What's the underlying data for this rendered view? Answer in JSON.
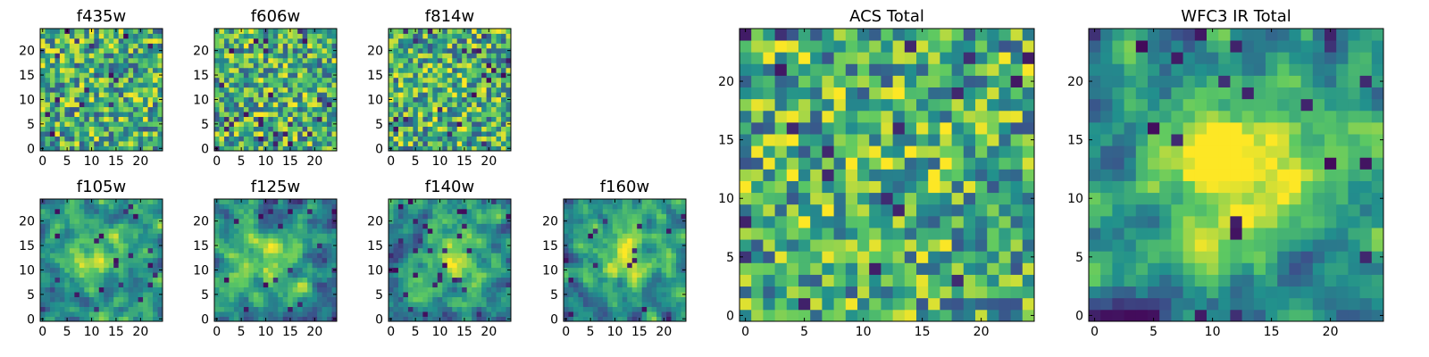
{
  "figure": {
    "colormap": "viridis",
    "colors": [
      "#440154",
      "#3b528b",
      "#21908d",
      "#5dc962",
      "#fde725"
    ]
  },
  "chart_data": [
    {
      "type": "heatmap",
      "title": "f435w",
      "xlim": [
        0,
        24
      ],
      "ylim": [
        0,
        24
      ],
      "xticks": [
        0,
        5,
        10,
        15,
        20
      ],
      "yticks": [
        0,
        5,
        10,
        15,
        20
      ],
      "texture": "noise",
      "center": [
        12,
        12
      ],
      "blob_strength": 0.0,
      "seed": 11
    },
    {
      "type": "heatmap",
      "title": "f606w",
      "xlim": [
        0,
        24
      ],
      "ylim": [
        0,
        24
      ],
      "xticks": [
        0,
        5,
        10,
        15,
        20
      ],
      "yticks": [
        0,
        5,
        10,
        15,
        20
      ],
      "texture": "noise",
      "center": [
        12,
        12
      ],
      "blob_strength": 0.05,
      "seed": 23
    },
    {
      "type": "heatmap",
      "title": "f814w",
      "xlim": [
        0,
        24
      ],
      "ylim": [
        0,
        24
      ],
      "xticks": [
        0,
        5,
        10,
        15,
        20
      ],
      "yticks": [
        0,
        5,
        10,
        15,
        20
      ],
      "texture": "noise",
      "center": [
        12,
        12
      ],
      "blob_strength": 0.05,
      "seed": 37
    },
    {
      "type": "heatmap",
      "title": "f105w",
      "xlim": [
        0,
        24
      ],
      "ylim": [
        0,
        24
      ],
      "xticks": [
        0,
        5,
        10,
        15,
        20
      ],
      "yticks": [
        0,
        5,
        10,
        15,
        20
      ],
      "texture": "smooth",
      "center": [
        11,
        13
      ],
      "blob_strength": 0.35,
      "seed": 41
    },
    {
      "type": "heatmap",
      "title": "f125w",
      "xlim": [
        0,
        24
      ],
      "ylim": [
        0,
        24
      ],
      "xticks": [
        0,
        5,
        10,
        15,
        20
      ],
      "yticks": [
        0,
        5,
        10,
        15,
        20
      ],
      "texture": "smooth",
      "center": [
        11,
        12
      ],
      "blob_strength": 0.3,
      "seed": 53
    },
    {
      "type": "heatmap",
      "title": "f140w",
      "xlim": [
        0,
        24
      ],
      "ylim": [
        0,
        24
      ],
      "xticks": [
        0,
        5,
        10,
        15,
        20
      ],
      "yticks": [
        0,
        5,
        10,
        15,
        20
      ],
      "texture": "smooth",
      "center": [
        13,
        13
      ],
      "blob_strength": 0.35,
      "seed": 67
    },
    {
      "type": "heatmap",
      "title": "f160w",
      "xlim": [
        0,
        24
      ],
      "ylim": [
        0,
        24
      ],
      "xticks": [
        0,
        5,
        10,
        15,
        20
      ],
      "yticks": [
        0,
        5,
        10,
        15,
        20
      ],
      "texture": "smooth",
      "center": [
        12,
        13
      ],
      "blob_strength": 0.45,
      "seed": 79
    },
    {
      "type": "heatmap",
      "title": "ACS Total",
      "xlim": [
        0,
        24
      ],
      "ylim": [
        0,
        24
      ],
      "xticks": [
        0,
        5,
        10,
        15,
        20
      ],
      "yticks": [
        0,
        5,
        10,
        15,
        20
      ],
      "texture": "noise",
      "center": [
        12,
        12
      ],
      "blob_strength": 0.1,
      "seed": 83
    },
    {
      "type": "heatmap",
      "title": "WFC3 IR Total",
      "xlim": [
        0,
        24
      ],
      "ylim": [
        0,
        24
      ],
      "xticks": [
        0,
        5,
        10,
        15,
        20
      ],
      "yticks": [
        0,
        5,
        10,
        15,
        20
      ],
      "texture": "smooth",
      "center": [
        12,
        13
      ],
      "blob_strength": 0.55,
      "seed": 97
    }
  ]
}
